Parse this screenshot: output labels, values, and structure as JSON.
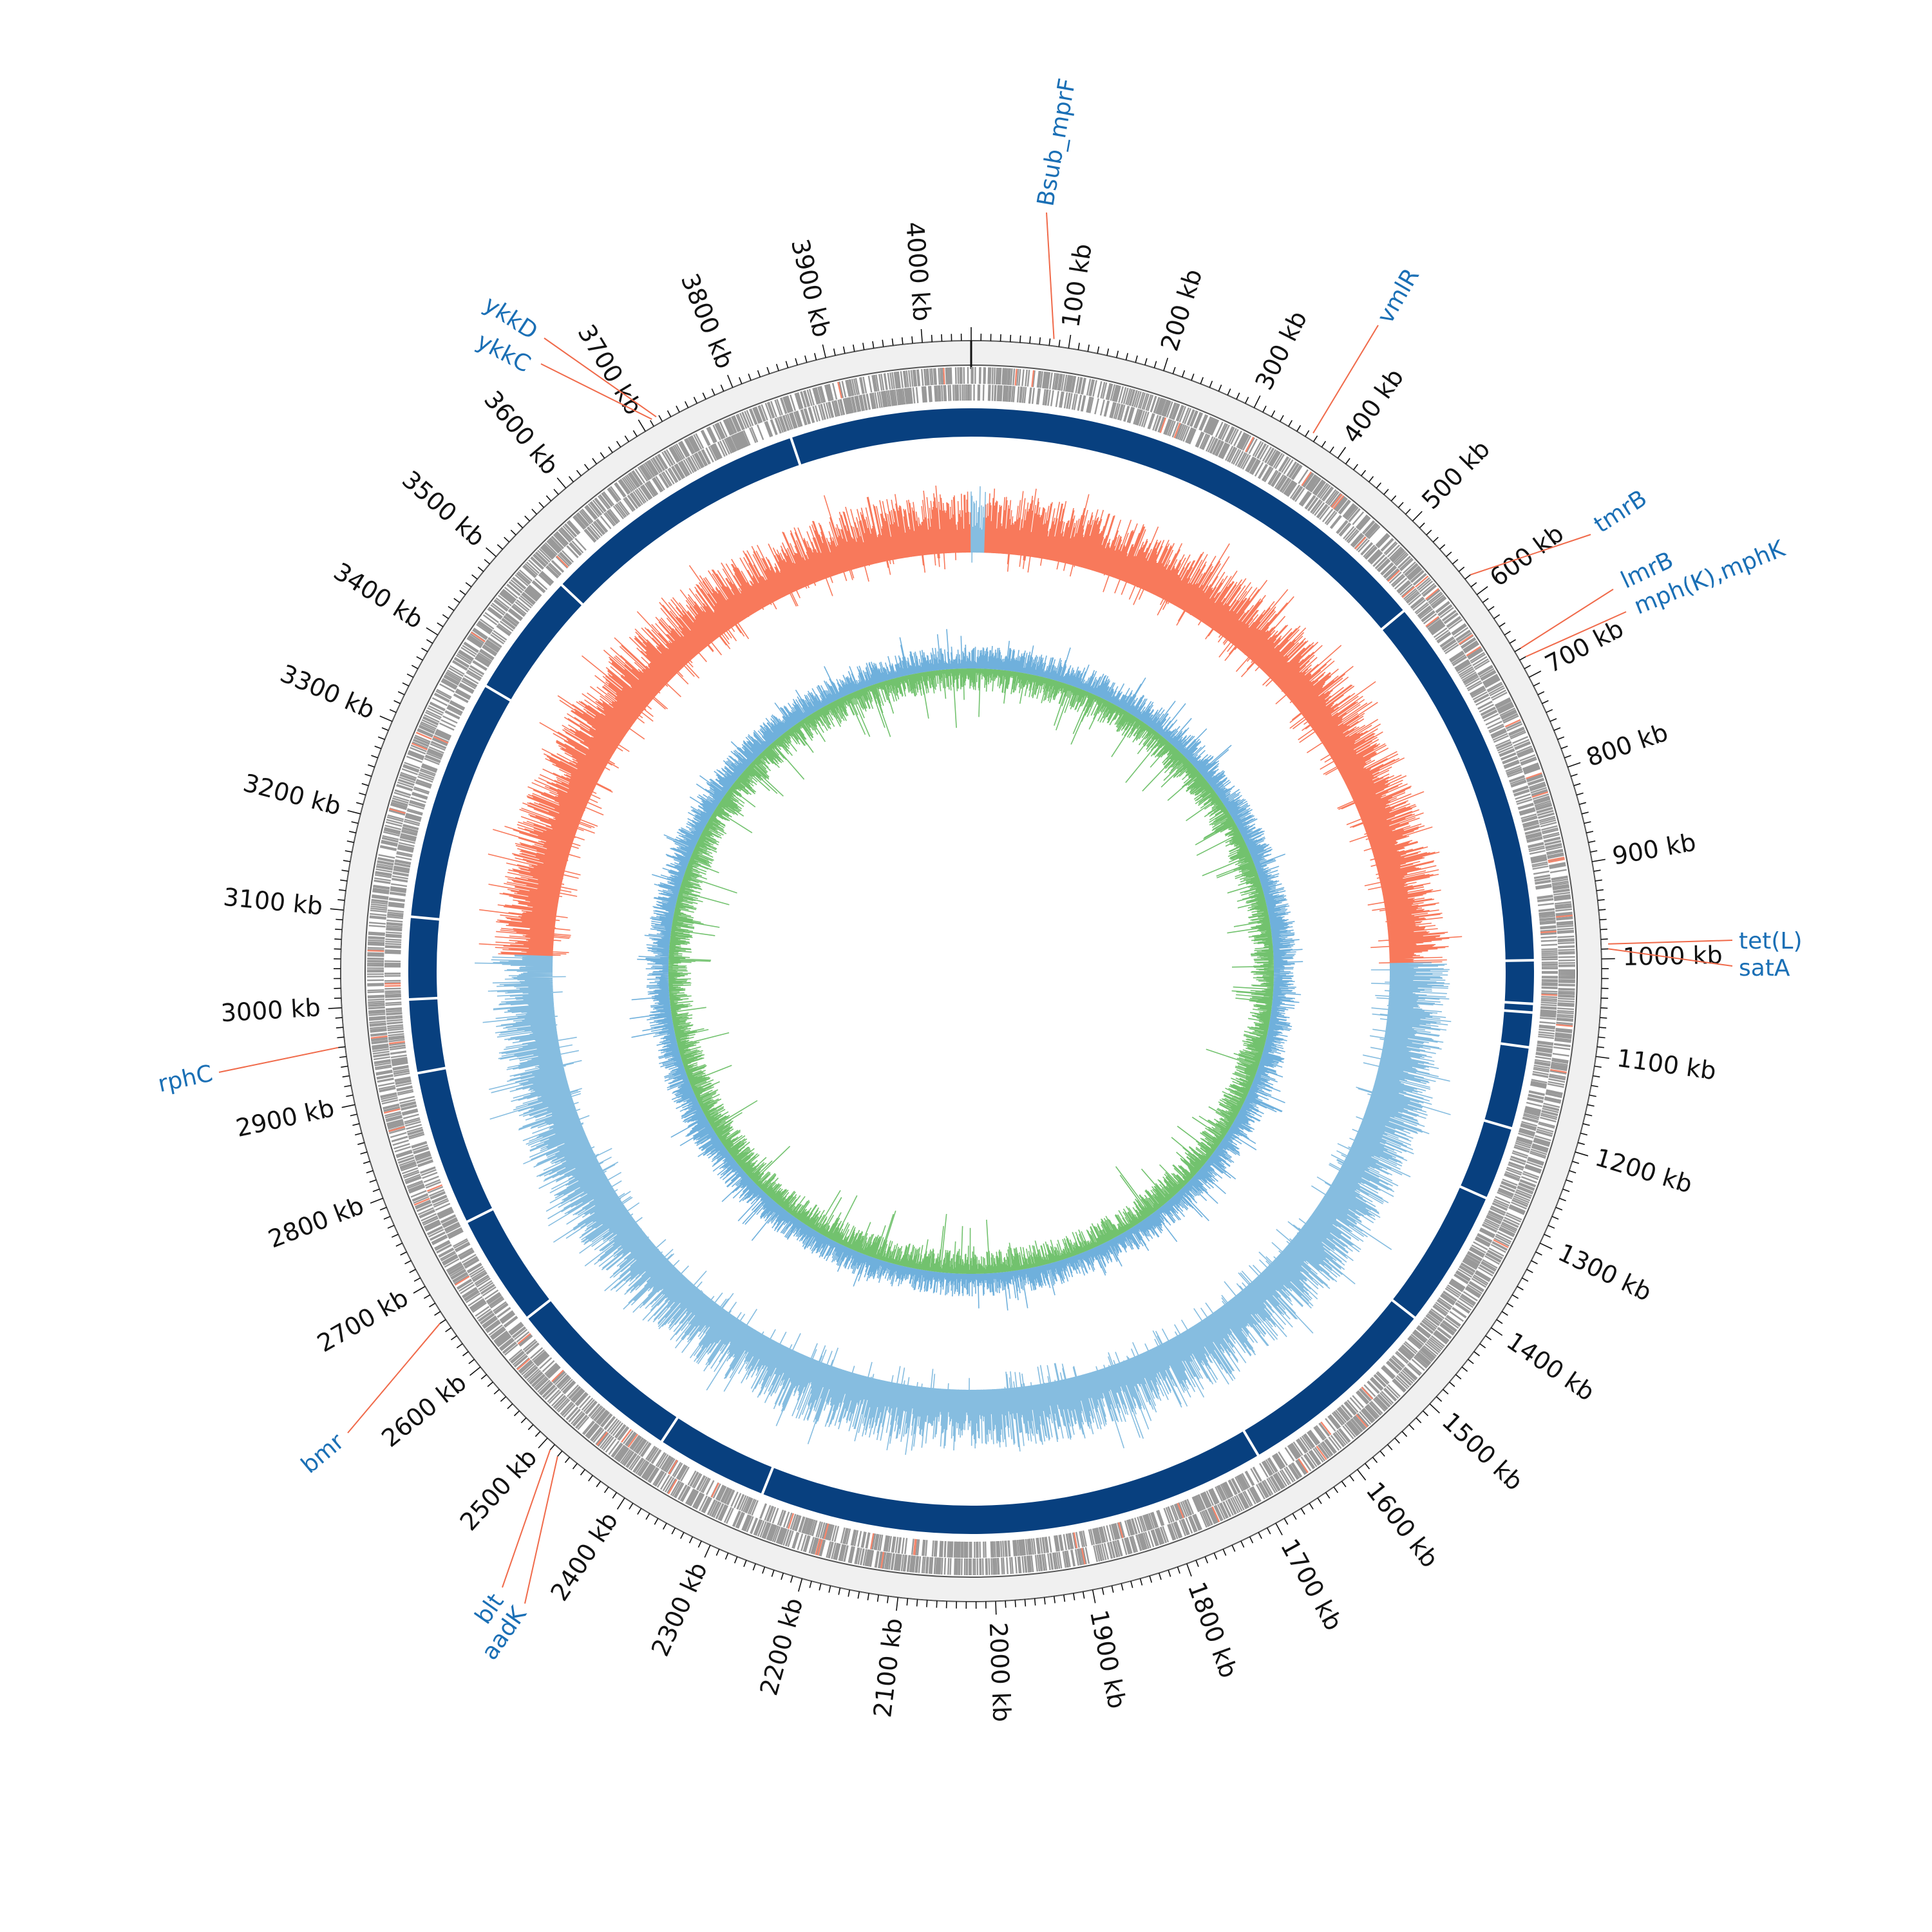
{
  "genome_length_kb": 4050,
  "tick_labels": [
    {
      "kb": 100,
      "text": "100 kb"
    },
    {
      "kb": 200,
      "text": "200 kb"
    },
    {
      "kb": 300,
      "text": "300 kb"
    },
    {
      "kb": 400,
      "text": "400 kb"
    },
    {
      "kb": 500,
      "text": "500 kb"
    },
    {
      "kb": 600,
      "text": "600 kb"
    },
    {
      "kb": 700,
      "text": "700 kb"
    },
    {
      "kb": 800,
      "text": "800 kb"
    },
    {
      "kb": 900,
      "text": "900 kb"
    },
    {
      "kb": 1000,
      "text": "1000 kb"
    },
    {
      "kb": 1100,
      "text": "1100 kb"
    },
    {
      "kb": 1200,
      "text": "1200 kb"
    },
    {
      "kb": 1300,
      "text": "1300 kb"
    },
    {
      "kb": 1400,
      "text": "1400 kb"
    },
    {
      "kb": 1500,
      "text": "1500 kb"
    },
    {
      "kb": 1600,
      "text": "1600 kb"
    },
    {
      "kb": 1700,
      "text": "1700 kb"
    },
    {
      "kb": 1800,
      "text": "1800 kb"
    },
    {
      "kb": 1900,
      "text": "1900 kb"
    },
    {
      "kb": 2000,
      "text": "2000 kb"
    },
    {
      "kb": 2100,
      "text": "2100 kb"
    },
    {
      "kb": 2200,
      "text": "2200 kb"
    },
    {
      "kb": 2300,
      "text": "2300 kb"
    },
    {
      "kb": 2400,
      "text": "2400 kb"
    },
    {
      "kb": 2500,
      "text": "2500 kb"
    },
    {
      "kb": 2600,
      "text": "2600 kb"
    },
    {
      "kb": 2700,
      "text": "2700 kb"
    },
    {
      "kb": 2800,
      "text": "2800 kb"
    },
    {
      "kb": 2900,
      "text": "2900 kb"
    },
    {
      "kb": 3000,
      "text": "3000 kb"
    },
    {
      "kb": 3100,
      "text": "3100 kb"
    },
    {
      "kb": 3200,
      "text": "3200 kb"
    },
    {
      "kb": 3300,
      "text": "3300 kb"
    },
    {
      "kb": 3400,
      "text": "3400 kb"
    },
    {
      "kb": 3500,
      "text": "3500 kb"
    },
    {
      "kb": 3600,
      "text": "3600 kb"
    },
    {
      "kb": 3700,
      "text": "3700 kb"
    },
    {
      "kb": 3800,
      "text": "3800 kb"
    },
    {
      "kb": 3900,
      "text": "3900 kb"
    },
    {
      "kb": 4000,
      "text": "4000 kb"
    }
  ],
  "gene_labels": [
    {
      "name": "Bsub_mprF",
      "kb": 84
    },
    {
      "name": "vmlR",
      "kb": 365
    },
    {
      "name": "tmrB",
      "kb": 580
    },
    {
      "name": "lmrB",
      "kb": 670
    },
    {
      "name": "mph(K),mphK",
      "kb": 680
    },
    {
      "name": "tet(L)",
      "kb": 985
    },
    {
      "name": "satA",
      "kb": 990
    },
    {
      "name": "rphC",
      "kb": 2960
    },
    {
      "name": "bmr",
      "kb": 2660
    },
    {
      "name": "blt",
      "kb": 2490
    },
    {
      "name": "aadK",
      "kb": 2480
    },
    {
      "name": "ykkC",
      "kb": 3712
    },
    {
      "name": "ykkD",
      "kb": 3717
    }
  ],
  "colors": {
    "backbone_ring": "#f0f0f0",
    "backbone_outline": "#555555",
    "cds": "#999999",
    "cds_highlight": "#f4866c",
    "contig_band": "#08407f",
    "gc_skew_positive": "#f8795b",
    "gc_skew_negative": "#86bde0",
    "gc_content_outer": "#6fb0dc",
    "gc_content_inner": "#72c26e",
    "gene_label": "#1a6fb5",
    "gene_leader": "#f06a4a",
    "tick": "#111111"
  },
  "icons": [
    "none"
  ]
}
